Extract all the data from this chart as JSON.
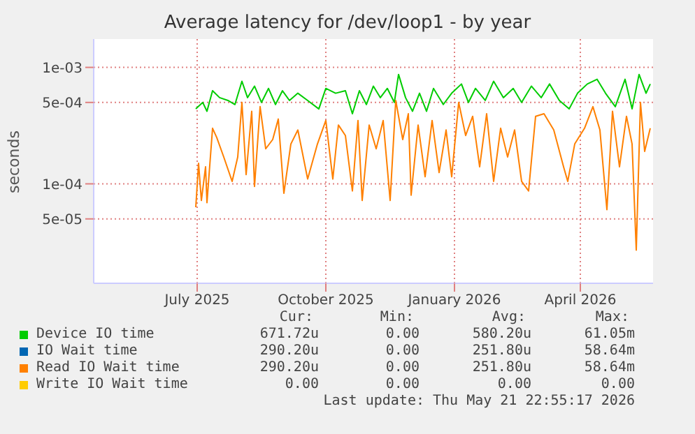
{
  "chart_data": {
    "type": "line",
    "title": "Average latency for /dev/loop1 - by year",
    "ylabel": "seconds",
    "log": "y",
    "grid": true,
    "legend": "bottom",
    "marker": "none",
    "line_style": "solid",
    "xlim": [
      "2025-04-18",
      "2026-05-23"
    ],
    "xticks": [
      {
        "value": "2025-07-01",
        "label": "July 2025"
      },
      {
        "value": "2025-10-01",
        "label": "October 2025"
      },
      {
        "value": "2026-01-01",
        "label": "January 2026"
      },
      {
        "value": "2026-04-01",
        "label": "April 2026"
      }
    ],
    "ylim": [
      1.4e-05,
      0.00175
    ],
    "yticks": [
      {
        "value": 5e-05,
        "label": "5e-05"
      },
      {
        "value": 0.0001,
        "label": "1e-04"
      },
      {
        "value": 0.0005,
        "label": "5e-04"
      },
      {
        "value": 0.001,
        "label": "1e-03"
      }
    ],
    "series": [
      {
        "name": "Device IO time",
        "color": "#00cc00",
        "x": [
          "2025-06-30",
          "2025-07-05",
          "2025-07-08",
          "2025-07-12",
          "2025-07-17",
          "2025-07-23",
          "2025-07-28",
          "2025-08-02",
          "2025-08-06",
          "2025-08-11",
          "2025-08-16",
          "2025-08-21",
          "2025-08-26",
          "2025-08-31",
          "2025-09-05",
          "2025-09-11",
          "2025-09-18",
          "2025-09-26",
          "2025-10-01",
          "2025-10-08",
          "2025-10-15",
          "2025-10-20",
          "2025-10-25",
          "2025-10-30",
          "2025-11-04",
          "2025-11-09",
          "2025-11-14",
          "2025-11-19",
          "2025-11-22",
          "2025-11-27",
          "2025-12-02",
          "2025-12-07",
          "2025-12-12",
          "2025-12-17",
          "2025-12-24",
          "2025-12-30",
          "2026-01-06",
          "2026-01-11",
          "2026-01-16",
          "2026-01-23",
          "2026-01-29",
          "2026-02-05",
          "2026-02-12",
          "2026-02-18",
          "2026-02-25",
          "2026-03-04",
          "2026-03-10",
          "2026-03-17",
          "2026-03-24",
          "2026-03-30",
          "2026-04-06",
          "2026-04-13",
          "2026-04-19",
          "2026-04-26",
          "2026-05-03",
          "2026-05-08",
          "2026-05-13",
          "2026-05-18",
          "2026-05-21"
        ],
        "values": [
          0.00044,
          0.0005,
          0.00042,
          0.00063,
          0.00055,
          0.00052,
          0.00048,
          0.00076,
          0.00055,
          0.00069,
          0.0005,
          0.00066,
          0.00048,
          0.00063,
          0.00052,
          0.0006,
          0.00052,
          0.00044,
          0.00066,
          0.0006,
          0.00063,
          0.0004,
          0.00063,
          0.00048,
          0.00069,
          0.00055,
          0.00066,
          0.0005,
          0.00087,
          0.00055,
          0.00042,
          0.0006,
          0.00042,
          0.00066,
          0.00048,
          0.0006,
          0.00072,
          0.0005,
          0.00066,
          0.00052,
          0.00076,
          0.00055,
          0.00066,
          0.0005,
          0.00069,
          0.00055,
          0.00072,
          0.00052,
          0.00044,
          0.0006,
          0.00072,
          0.00079,
          0.0006,
          0.00046,
          0.00079,
          0.00044,
          0.00087,
          0.0006,
          0.00072
        ]
      },
      {
        "name": "IO Wait time",
        "color": "#0066b3"
      },
      {
        "name": "Read IO Wait time",
        "color": "#ff8000",
        "x": [
          "2025-06-30",
          "2025-07-02",
          "2025-07-04",
          "2025-07-07",
          "2025-07-08",
          "2025-07-12",
          "2025-07-15",
          "2025-07-20",
          "2025-07-26",
          "2025-07-30",
          "2025-08-02",
          "2025-08-05",
          "2025-08-09",
          "2025-08-11",
          "2025-08-15",
          "2025-08-19",
          "2025-08-24",
          "2025-08-28",
          "2025-09-01",
          "2025-09-06",
          "2025-09-11",
          "2025-09-18",
          "2025-09-25",
          "2025-10-01",
          "2025-10-06",
          "2025-10-10",
          "2025-10-15",
          "2025-10-20",
          "2025-10-24",
          "2025-10-27",
          "2025-11-01",
          "2025-11-06",
          "2025-11-11",
          "2025-11-16",
          "2025-11-20",
          "2025-11-25",
          "2025-11-29",
          "2025-12-01",
          "2025-12-06",
          "2025-12-11",
          "2025-12-16",
          "2025-12-21",
          "2025-12-26",
          "2025-12-30",
          "2026-01-04",
          "2026-01-09",
          "2026-01-14",
          "2026-01-19",
          "2026-01-24",
          "2026-01-29",
          "2026-02-03",
          "2026-02-08",
          "2026-02-13",
          "2026-02-18",
          "2026-02-23",
          "2026-02-28",
          "2026-03-06",
          "2026-03-13",
          "2026-03-20",
          "2026-03-23",
          "2026-03-28",
          "2026-04-04",
          "2026-04-10",
          "2026-04-15",
          "2026-04-20",
          "2026-04-24",
          "2026-04-29",
          "2026-05-04",
          "2026-05-08",
          "2026-05-11",
          "2026-05-14",
          "2026-05-17",
          "2026-05-21"
        ],
        "values": [
          6.3e-05,
          0.00015,
          7.2e-05,
          0.00014,
          6.9e-05,
          0.0003,
          0.00025,
          0.00017,
          0.000105,
          0.00017,
          0.0005,
          0.00012,
          0.00042,
          9.5e-05,
          0.00046,
          0.0002,
          0.00024,
          0.00036,
          8.3e-05,
          0.00022,
          0.00029,
          0.00011,
          0.00022,
          0.00035,
          0.00011,
          0.00032,
          0.00026,
          8.7e-05,
          0.00035,
          7.2e-05,
          0.00032,
          0.0002,
          0.00035,
          7.2e-05,
          0.00052,
          0.00024,
          0.0004,
          8e-05,
          0.00032,
          0.000115,
          0.00035,
          0.000125,
          0.00029,
          0.000115,
          0.0005,
          0.00026,
          0.00038,
          0.00014,
          0.0004,
          0.000105,
          0.0003,
          0.00017,
          0.00029,
          0.000105,
          8.7e-05,
          0.00038,
          0.0004,
          0.00029,
          0.00014,
          0.000105,
          0.00022,
          0.0003,
          0.00046,
          0.00029,
          6e-05,
          0.00042,
          0.00014,
          0.00038,
          0.00022,
          2.7e-05,
          0.0005,
          0.00019,
          0.0003
        ]
      },
      {
        "name": "Write IO Wait time",
        "color": "#ffcc00"
      }
    ],
    "annotations": [
      "Cur:",
      "Min:",
      "Avg:",
      "Max:",
      "671.72u",
      "0.00",
      "580.20u",
      "61.05m",
      "290.20u",
      "0.00",
      "251.80u",
      "58.64m",
      "290.20u",
      "0.00",
      "251.80u",
      "58.64m",
      "0.00",
      "0.00",
      "0.00",
      "0.00",
      "Last update: Thu May 21 22:55:17 2026"
    ]
  }
}
